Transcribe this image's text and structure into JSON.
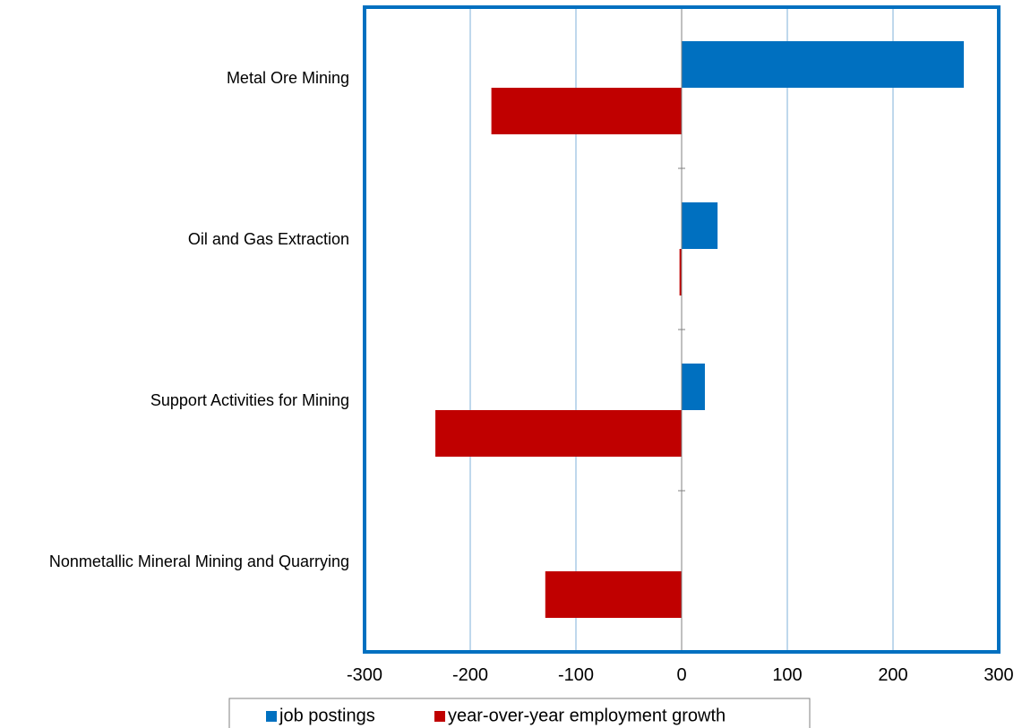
{
  "chart_data": {
    "type": "bar",
    "orientation": "horizontal",
    "categories": [
      "Metal Ore Mining",
      "Oil and Gas Extraction",
      "Support Activities for Mining",
      "Nonmetallic Mineral Mining and Quarrying"
    ],
    "series": [
      {
        "name": "job postings",
        "color": "#0070c0",
        "values": [
          267,
          34,
          22,
          0
        ]
      },
      {
        "name": "year-over-year employment growth",
        "color": "#c00000",
        "values": [
          -180,
          -2,
          -233,
          -129
        ]
      }
    ],
    "xlim": [
      -300,
      300
    ],
    "xticks": [
      -300,
      -200,
      -100,
      0,
      100,
      200,
      300
    ],
    "xtick_labels": [
      "-300",
      "-200",
      "-100",
      "0",
      "100",
      "200",
      "300"
    ],
    "grid": "vertical",
    "legend": "bottom",
    "frame_color": "#0070c0",
    "grid_color": "#7fb2d9"
  }
}
